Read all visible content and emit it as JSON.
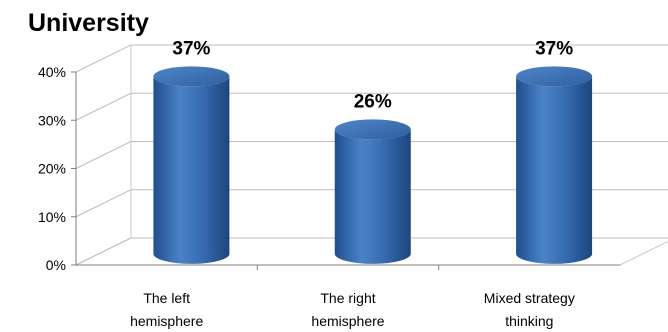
{
  "chart_data": {
    "type": "bar",
    "title": "University",
    "categories": [
      [
        "The left",
        "hemisphere"
      ],
      [
        "The right",
        "hemisphere"
      ],
      [
        "Mixed strategy",
        "thinking"
      ]
    ],
    "values": [
      37,
      26,
      37
    ],
    "data_labels": [
      "37%",
      "26%",
      "37%"
    ],
    "ylim": [
      0,
      40
    ],
    "yticks": [
      0,
      10,
      20,
      30,
      40
    ],
    "ytick_labels": [
      "0%",
      "10%",
      "20%",
      "30%",
      "40%"
    ],
    "xlabel": "",
    "ylabel": "",
    "grid": true,
    "legend": "none",
    "bar_color": "#3a6fb5",
    "three_d": true
  }
}
